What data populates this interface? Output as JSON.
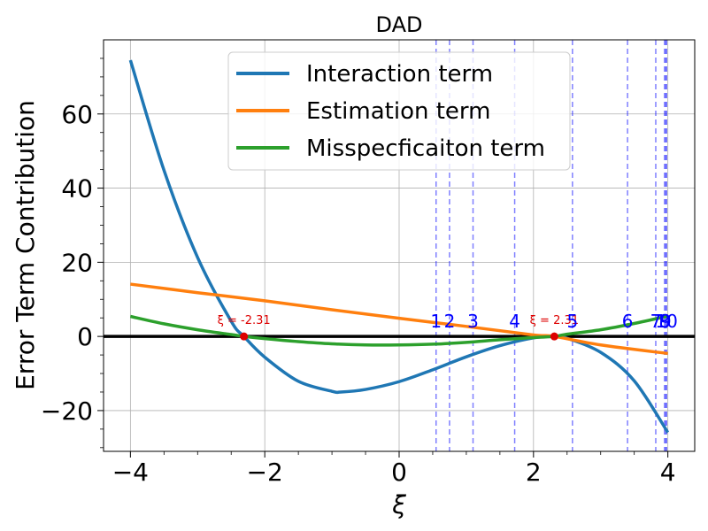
{
  "chart_data": {
    "type": "line",
    "title": "DAD",
    "xlabel": "ξ",
    "ylabel": "Error Term Contribution",
    "xlim": [
      -4.4,
      4.4
    ],
    "ylim": [
      -31,
      80
    ],
    "x_ticks": [
      -4,
      -2,
      0,
      2,
      4
    ],
    "y_ticks": [
      -20,
      0,
      20,
      40,
      60
    ],
    "x_tick_labels": [
      "−4",
      "−2",
      "0",
      "2",
      "4"
    ],
    "y_tick_labels": [
      "−20",
      "0",
      "20",
      "40",
      "60"
    ],
    "grid": true,
    "legend_position": "top-center",
    "series": [
      {
        "name": "Interaction term",
        "color": "#1f77b4",
        "x": [
          -4,
          -3.5,
          -3,
          -2.5,
          -2.31,
          -2,
          -1.5,
          -1,
          -0.87,
          -0.5,
          0,
          0.5,
          1,
          1.5,
          2,
          2.31,
          2.5,
          3,
          3.5,
          4
        ],
        "y": [
          74.5,
          44.8,
          21.3,
          4.1,
          0,
          -5.6,
          -12.1,
          -14.8,
          -15.0,
          -14.3,
          -12.2,
          -9.0,
          -5.5,
          -2.5,
          -0.4,
          0,
          -0.5,
          -4.3,
          -12.0,
          -25.9
        ]
      },
      {
        "name": "Estimation term",
        "color": "#ff7f0e",
        "x": [
          -4,
          -3,
          -2,
          -1,
          0,
          1,
          2,
          2.31,
          3,
          4
        ],
        "y": [
          14.1,
          11.8,
          9.6,
          7.2,
          4.9,
          2.7,
          0.4,
          0,
          -2.3,
          -4.6
        ]
      },
      {
        "name": "Misspecficaiton term",
        "color": "#2ca02c",
        "x": [
          -4,
          -3.5,
          -3,
          -2.5,
          -2.31,
          -2,
          -1.5,
          -1,
          -0.5,
          0,
          0.5,
          1,
          1.5,
          2,
          2.31,
          2.5,
          3,
          3.5,
          4
        ],
        "y": [
          5.4,
          3.4,
          1.8,
          0.5,
          0,
          -0.6,
          -1.4,
          -2.0,
          -2.3,
          -2.3,
          -2.1,
          -1.6,
          -0.9,
          -0.3,
          0,
          0.6,
          1.8,
          3.5,
          5.5
        ]
      }
    ],
    "horizontal_line": {
      "y": 0,
      "color": "#000000"
    },
    "vertical_lines": [
      {
        "label": "1",
        "x": 0.55
      },
      {
        "label": "2",
        "x": 0.75
      },
      {
        "label": "3",
        "x": 1.1
      },
      {
        "label": "4",
        "x": 1.72
      },
      {
        "label": "5",
        "x": 2.58
      },
      {
        "label": "6",
        "x": 3.4
      },
      {
        "label": "7",
        "x": 3.82
      },
      {
        "label": "8",
        "x": 3.95
      },
      {
        "label": "9",
        "x": 3.97
      },
      {
        "label": "10",
        "x": 3.98
      }
    ],
    "vertical_line_color": "#0000ff",
    "roots": [
      {
        "x": -2.31,
        "y": 0,
        "label": "ξ = -2.31"
      },
      {
        "x": 2.31,
        "y": 0,
        "label": "ξ = 2.31"
      }
    ],
    "root_color": "#dd0000"
  }
}
